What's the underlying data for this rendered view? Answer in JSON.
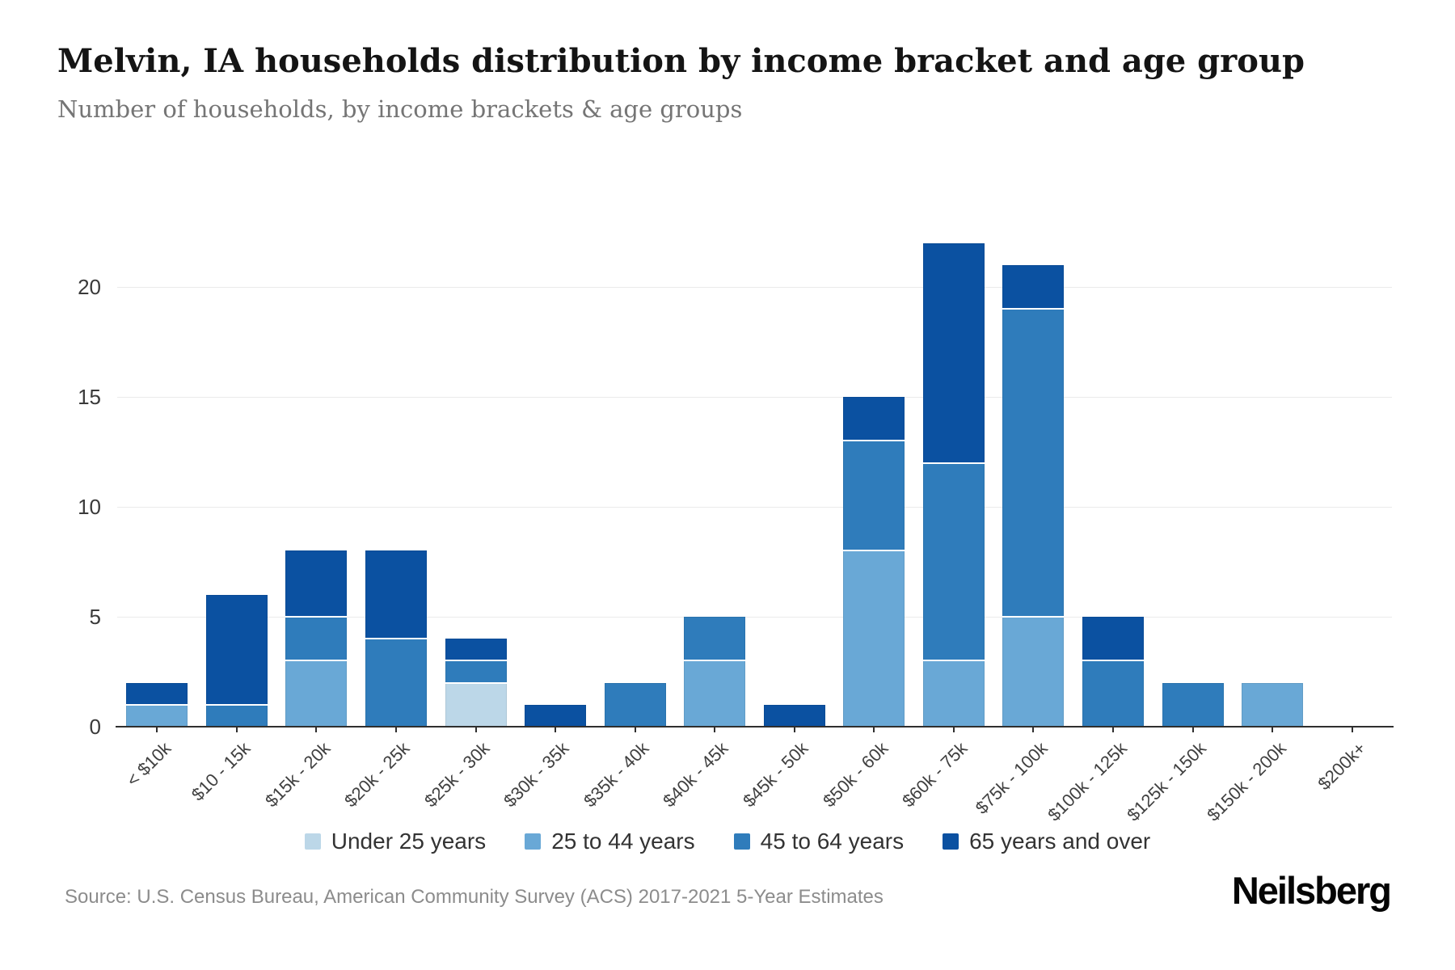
{
  "header": {
    "title": "Melvin, IA households distribution by income bracket and age group",
    "subtitle": "Number of households, by income brackets & age groups"
  },
  "chart_data": {
    "type": "bar",
    "stacked": true,
    "title": "Melvin, IA households distribution by income bracket and age group",
    "subtitle": "Number of households, by income brackets & age groups",
    "xlabel": "",
    "ylabel": "",
    "yticks": [
      0,
      5,
      10,
      15,
      20
    ],
    "ylim": [
      0,
      22.5
    ],
    "grid": true,
    "legend_position": "bottom",
    "categories": [
      "< $10k",
      "$10 - 15k",
      "$15k - 20k",
      "$20k - 25k",
      "$25k - 30k",
      "$30k - 35k",
      "$35k - 40k",
      "$40k - 45k",
      "$45k - 50k",
      "$50k - 60k",
      "$60k - 75k",
      "$75k - 100k",
      "$100k - 125k",
      "$125k - 150k",
      "$150k - 200k",
      "$200k+"
    ],
    "series": [
      {
        "name": "Under 25 years",
        "color": "#bcd7e8",
        "values": [
          0,
          0,
          0,
          0,
          2,
          0,
          0,
          0,
          0,
          0,
          0,
          0,
          0,
          0,
          0,
          0
        ]
      },
      {
        "name": "25 to 44 years",
        "color": "#69a8d6",
        "values": [
          1,
          0,
          3,
          0,
          0,
          0,
          0,
          3,
          0,
          8,
          3,
          5,
          0,
          0,
          2,
          0
        ]
      },
      {
        "name": "45 to 64 years",
        "color": "#2f7cbb",
        "values": [
          0,
          1,
          2,
          4,
          1,
          0,
          2,
          2,
          0,
          5,
          9,
          14,
          3,
          2,
          0,
          0
        ]
      },
      {
        "name": "65 years and over",
        "color": "#0b51a1",
        "values": [
          1,
          5,
          3,
          4,
          1,
          1,
          0,
          0,
          1,
          2,
          10,
          2,
          2,
          0,
          0,
          0
        ]
      }
    ],
    "bar_totals": [
      2,
      6,
      8,
      8,
      4,
      1,
      2,
      5,
      1,
      15,
      22,
      21,
      5,
      2,
      2,
      0
    ]
  },
  "footer": {
    "source": "Source: U.S. Census Bureau, American Community Survey (ACS) 2017-2021 5-Year Estimates",
    "brand": "Neilsberg"
  }
}
